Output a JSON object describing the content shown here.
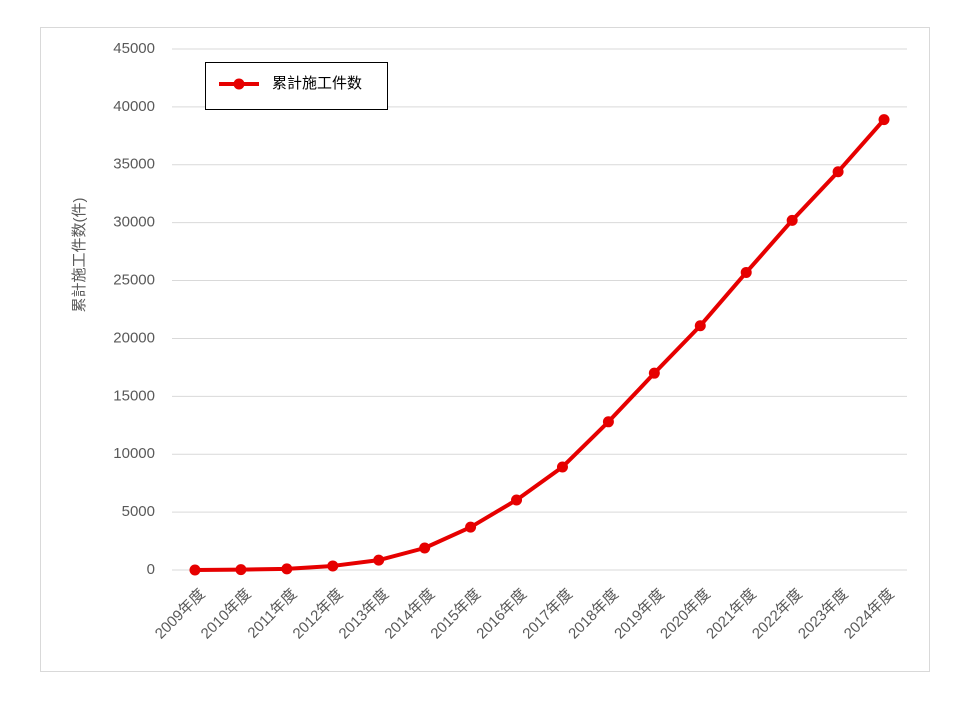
{
  "chart_data": {
    "type": "line",
    "y_label": "累計施工件数(件)",
    "categories": [
      "2009年度",
      "2010年度",
      "2011年度",
      "2012年度",
      "2013年度",
      "2014年度",
      "2015年度",
      "2016年度",
      "2017年度",
      "2018年度",
      "2019年度",
      "2020年度",
      "2021年度",
      "2022年度",
      "2023年度",
      "2024年度"
    ],
    "series": [
      {
        "name": "累計施工件数",
        "color": "#e60000",
        "values": [
          0,
          30,
          100,
          350,
          850,
          1900,
          3700,
          6050,
          8900,
          12800,
          17000,
          21100,
          25700,
          30200,
          34400,
          38900
        ]
      }
    ],
    "ylim": [
      0,
      45000
    ],
    "yticks": [
      0,
      5000,
      10000,
      15000,
      20000,
      25000,
      30000,
      35000,
      40000,
      45000
    ],
    "grid": true,
    "legend": "top-left"
  }
}
